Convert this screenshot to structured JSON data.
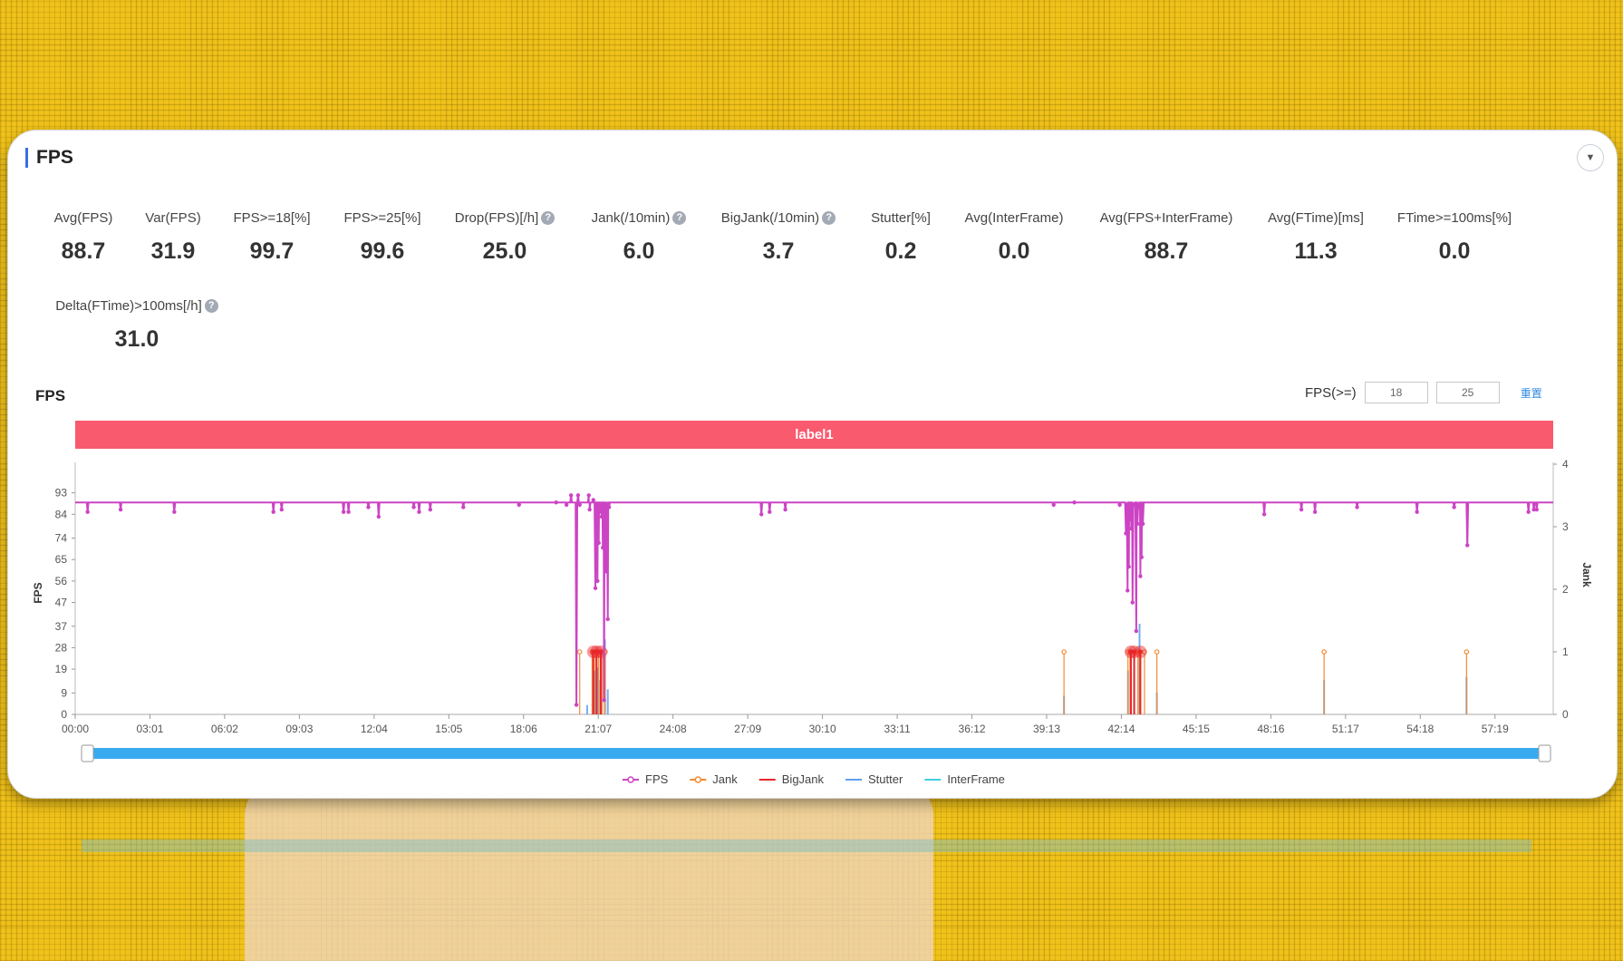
{
  "panel": {
    "title": "FPS",
    "collapse_icon": "chevron-down-icon",
    "accent_color": "#3b6fe0"
  },
  "metrics": [
    {
      "label": "Avg(FPS)",
      "value": "88.7",
      "help": false
    },
    {
      "label": "Var(FPS)",
      "value": "31.9",
      "help": false
    },
    {
      "label": "FPS>=18[%]",
      "value": "99.7",
      "help": false
    },
    {
      "label": "FPS>=25[%]",
      "value": "99.6",
      "help": false
    },
    {
      "label": "Drop(FPS)[/h]",
      "value": "25.0",
      "help": true
    },
    {
      "label": "Jank(/10min)",
      "value": "6.0",
      "help": true
    },
    {
      "label": "BigJank(/10min)",
      "value": "3.7",
      "help": true
    },
    {
      "label": "Stutter[%]",
      "value": "0.2",
      "help": false
    },
    {
      "label": "Avg(InterFrame)",
      "value": "0.0",
      "help": false
    },
    {
      "label": "Avg(FPS+InterFrame)",
      "value": "88.7",
      "help": false
    },
    {
      "label": "Avg(FTime)[ms]",
      "value": "11.3",
      "help": false
    },
    {
      "label": "FTime>=100ms[%]",
      "value": "0.0",
      "help": false
    },
    {
      "label": "Delta(FTime)>100ms[/h]",
      "value": "31.0",
      "help": true
    }
  ],
  "chart_section": {
    "title": "FPS",
    "threshold_label": "FPS(>=)",
    "threshold_1": "18",
    "threshold_2": "25",
    "reset_label": "重置",
    "band_label": "label1",
    "band_color": "#f95a6e"
  },
  "chart_data": {
    "type": "line",
    "xlabel": "",
    "ylabel": "FPS",
    "y2label": "Jank",
    "x_ticks": [
      "00:00",
      "03:01",
      "06:02",
      "09:03",
      "12:04",
      "15:05",
      "18:06",
      "21:07",
      "24:08",
      "27:09",
      "30:10",
      "33:11",
      "36:12",
      "39:13",
      "42:14",
      "45:15",
      "48:16",
      "51:17",
      "54:18",
      "57:19"
    ],
    "x_range_seconds": [
      0,
      3580
    ],
    "y_ticks": [
      0,
      9,
      19,
      28,
      37,
      47,
      56,
      65,
      74,
      84,
      93
    ],
    "y_range": [
      0,
      102
    ],
    "y2_ticks": [
      0,
      1,
      2,
      3,
      4
    ],
    "y2_range": [
      0,
      4
    ],
    "legend_position": "bottom",
    "series": [
      {
        "name": "FPS",
        "color": "#cc44c4",
        "baseline": 89,
        "dips": [
          [
            30,
            85
          ],
          [
            110,
            86
          ],
          [
            240,
            85
          ],
          [
            480,
            85
          ],
          [
            500,
            86
          ],
          [
            650,
            85
          ],
          [
            662,
            85
          ],
          [
            710,
            87
          ],
          [
            735,
            83
          ],
          [
            820,
            87
          ],
          [
            833,
            85
          ],
          [
            860,
            86
          ],
          [
            940,
            87
          ],
          [
            1075,
            88
          ],
          [
            1165,
            89
          ],
          [
            1190,
            88
          ],
          [
            1201,
            92
          ],
          [
            1214,
            4
          ],
          [
            1218,
            92
          ],
          [
            1222,
            88
          ],
          [
            1244,
            92
          ],
          [
            1246,
            86
          ],
          [
            1255,
            90
          ],
          [
            1260,
            53
          ],
          [
            1265,
            56
          ],
          [
            1268,
            72
          ],
          [
            1271,
            87
          ],
          [
            1273,
            85
          ],
          [
            1275,
            83
          ],
          [
            1278,
            70
          ],
          [
            1281,
            6
          ],
          [
            1284,
            83
          ],
          [
            1286,
            60
          ],
          [
            1290,
            40
          ],
          [
            1293,
            87
          ],
          [
            1662,
            84
          ],
          [
            1682,
            85
          ],
          [
            1720,
            86
          ],
          [
            2370,
            88
          ],
          [
            2420,
            89
          ],
          [
            2530,
            88
          ],
          [
            2545,
            76
          ],
          [
            2549,
            52
          ],
          [
            2552,
            62
          ],
          [
            2555,
            82
          ],
          [
            2558,
            78
          ],
          [
            2561,
            47
          ],
          [
            2565,
            88
          ],
          [
            2570,
            35
          ],
          [
            2573,
            80
          ],
          [
            2577,
            87
          ],
          [
            2580,
            58
          ],
          [
            2583,
            66
          ],
          [
            2586,
            80
          ],
          [
            2880,
            84
          ],
          [
            2970,
            86
          ],
          [
            3003,
            85
          ],
          [
            3105,
            87
          ],
          [
            3250,
            85
          ],
          [
            3340,
            87
          ],
          [
            3372,
            71
          ],
          [
            3520,
            85
          ],
          [
            3533,
            86
          ],
          [
            3540,
            86
          ]
        ]
      },
      {
        "name": "Jank",
        "color": "#f28a30",
        "points": [
          [
            1222,
            1
          ],
          [
            1252,
            1
          ],
          [
            1260,
            1
          ],
          [
            1268,
            1
          ],
          [
            1277,
            1
          ],
          [
            1284,
            1
          ],
          [
            2395,
            1
          ],
          [
            2550,
            1
          ],
          [
            2555,
            1
          ],
          [
            2558,
            1
          ],
          [
            2574,
            1
          ],
          [
            2578,
            1
          ],
          [
            2590,
            1
          ],
          [
            2620,
            1
          ],
          [
            3025,
            1
          ],
          [
            3370,
            1
          ]
        ]
      },
      {
        "name": "BigJank",
        "color": "#e8262a",
        "points": [
          [
            1255,
            1
          ],
          [
            1263,
            1
          ],
          [
            1273,
            1
          ],
          [
            2557,
            1
          ],
          [
            2565,
            1
          ],
          [
            2580,
            1
          ]
        ]
      },
      {
        "name": "Stutter",
        "color": "#5e9ff0",
        "points": [
          [
            1240,
            0.15
          ],
          [
            1258,
            0.7
          ],
          [
            1265,
            0.75
          ],
          [
            1272,
            0.55
          ],
          [
            1283,
            1.2
          ],
          [
            1290,
            0.4
          ],
          [
            2395,
            0.3
          ],
          [
            2550,
            0.7
          ],
          [
            2556,
            0.6
          ],
          [
            2565,
            0.9
          ],
          [
            2578,
            1.45
          ],
          [
            2620,
            0.35
          ],
          [
            3025,
            0.55
          ],
          [
            3370,
            0.6
          ]
        ]
      },
      {
        "name": "InterFrame",
        "color": "#40cfe0",
        "points": []
      }
    ],
    "grid": false
  }
}
